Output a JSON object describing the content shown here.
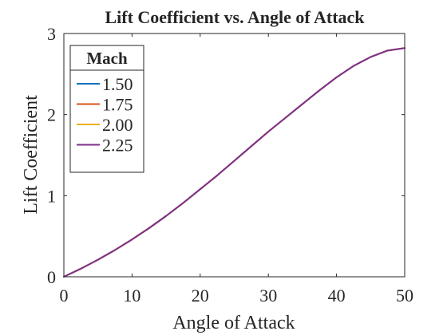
{
  "chart_data": {
    "type": "line",
    "title": "Lift Coefficient vs. Angle of Attack",
    "xlabel": "Angle of Attack",
    "ylabel": "Lift Coefficient",
    "xlim": [
      0,
      50
    ],
    "ylim": [
      0,
      3
    ],
    "xticks": [
      0,
      10,
      20,
      30,
      40,
      50
    ],
    "yticks": [
      0,
      1,
      2,
      3
    ],
    "grid": false,
    "legend": {
      "title": "Mach",
      "placement": "top-left"
    },
    "x": [
      0,
      2.5,
      5,
      7.5,
      10,
      12.5,
      15,
      17.5,
      20,
      22.5,
      25,
      27.5,
      30,
      32.5,
      35,
      37.5,
      40,
      42.5,
      45,
      47.5,
      50
    ],
    "series": [
      {
        "name": "1.50",
        "color": "#0072BD",
        "values": [
          0,
          0.1,
          0.21,
          0.33,
          0.46,
          0.6,
          0.75,
          0.91,
          1.08,
          1.25,
          1.43,
          1.61,
          1.79,
          1.96,
          2.13,
          2.3,
          2.46,
          2.6,
          2.71,
          2.79,
          2.82
        ]
      },
      {
        "name": "1.75",
        "color": "#D95319",
        "values": [
          0,
          0.1,
          0.21,
          0.33,
          0.46,
          0.6,
          0.75,
          0.91,
          1.08,
          1.25,
          1.43,
          1.61,
          1.79,
          1.96,
          2.13,
          2.3,
          2.46,
          2.6,
          2.71,
          2.79,
          2.82
        ]
      },
      {
        "name": "2.00",
        "color": "#EDB120",
        "values": [
          0,
          0.1,
          0.21,
          0.33,
          0.46,
          0.6,
          0.75,
          0.91,
          1.08,
          1.25,
          1.43,
          1.61,
          1.79,
          1.96,
          2.13,
          2.3,
          2.46,
          2.6,
          2.71,
          2.79,
          2.82
        ]
      },
      {
        "name": "2.25",
        "color": "#7E2F8E",
        "values": [
          0,
          0.1,
          0.21,
          0.33,
          0.46,
          0.6,
          0.75,
          0.91,
          1.08,
          1.25,
          1.43,
          1.61,
          1.79,
          1.96,
          2.13,
          2.3,
          2.46,
          2.6,
          2.71,
          2.79,
          2.82
        ]
      }
    ]
  }
}
